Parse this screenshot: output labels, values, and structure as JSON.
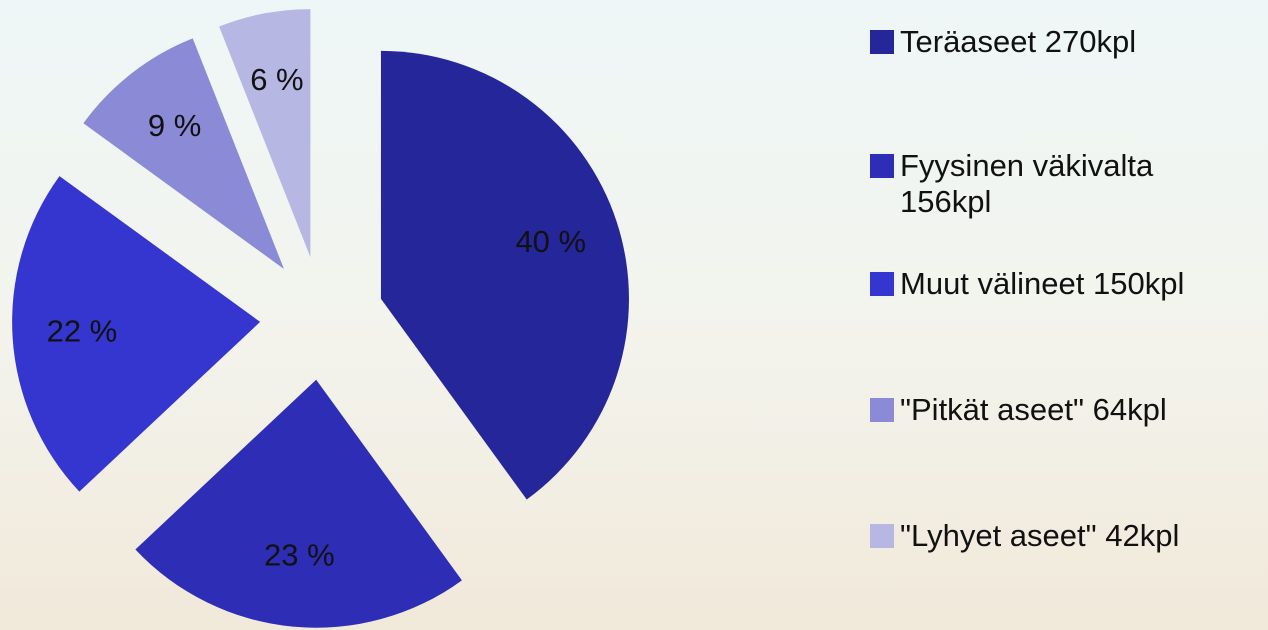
{
  "chart_data": {
    "type": "pie",
    "categories": [
      "Teräaseet 270kpl",
      "Fyysinen väkivalta 156kpl",
      "Muut välineet 150kpl",
      "\"Pitkät aseet\" 64kpl",
      "\"Lyhyet aseet\" 42kpl"
    ],
    "values": [
      40,
      23,
      22,
      9,
      6
    ],
    "value_labels": [
      "40 %",
      "23 %",
      "22 %",
      "9 %",
      "6 %"
    ],
    "colors": [
      "#25269a",
      "#2e2db5",
      "#3535cf",
      "#8a8ad6",
      "#b7b7e4"
    ],
    "legend": "right"
  }
}
